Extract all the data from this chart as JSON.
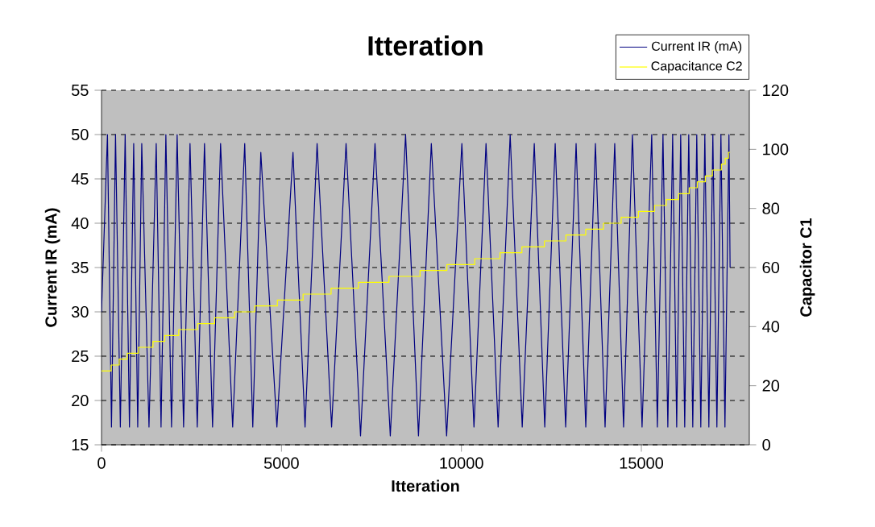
{
  "chart_data": {
    "type": "line",
    "title": "Itteration",
    "xlabel": "Itteration",
    "ylabel": "Current IR (mA)",
    "y2label": "Capacitor C1",
    "xlim": [
      0,
      18000
    ],
    "xticks": [
      0,
      5000,
      10000,
      15000
    ],
    "ylim": [
      15,
      55
    ],
    "yticks": [
      15,
      20,
      25,
      30,
      35,
      40,
      45,
      50,
      55
    ],
    "y2lim": [
      0,
      120
    ],
    "y2ticks": [
      0,
      20,
      40,
      60,
      80,
      100,
      120
    ],
    "grid": "y",
    "legend": "top right",
    "series": [
      {
        "name": "Current IR (mA)",
        "color": "#000080",
        "axis": "y",
        "x": [
          0,
          165,
          277,
          389,
          523,
          657,
          776,
          894,
          1006,
          1118,
          1319,
          1520,
          1654,
          1788,
          1945,
          2101,
          2280,
          2459,
          2660,
          2861,
          3085,
          3308,
          3644,
          3979,
          4203,
          4426,
          4873,
          5320,
          5655,
          5990,
          6393,
          6795,
          7197,
          7599,
          8024,
          8449,
          8807,
          9164,
          9589,
          10013,
          10349,
          10684,
          11020,
          11355,
          11690,
          12025,
          12316,
          12606,
          12897,
          13187,
          13456,
          13724,
          13992,
          14260,
          14506,
          14752,
          15020,
          15288,
          15445,
          15601,
          15736,
          15870,
          15982,
          16093,
          16205,
          16317,
          16429,
          16540,
          16652,
          16764,
          16876,
          16987,
          17099,
          17211,
          17323,
          17434,
          17466
        ],
        "values": [
          30,
          50,
          17,
          50,
          17,
          50,
          17,
          49,
          17,
          49,
          17,
          49,
          17,
          50,
          17,
          50,
          17,
          49,
          17,
          49,
          17,
          49,
          17,
          49,
          17,
          48,
          17,
          48,
          17,
          49,
          17,
          49,
          16,
          49,
          16,
          50,
          16,
          49,
          16,
          49,
          17,
          49,
          17,
          50,
          17,
          49,
          17,
          49,
          17,
          49,
          17,
          49,
          17,
          49,
          17,
          50,
          17,
          50,
          17,
          50,
          17,
          50,
          17,
          50,
          17,
          50,
          17,
          50,
          17,
          50,
          17,
          50,
          17,
          50,
          17,
          50,
          35
        ]
      },
      {
        "name": "Capacitance C2",
        "color": "#ffff00",
        "type": "step",
        "axis": "y2",
        "x": [
          0,
          268,
          492,
          715,
          1028,
          1430,
          1757,
          2146,
          2668,
          3143,
          3697,
          4260,
          4886,
          5601,
          6379,
          7139,
          7988,
          8851,
          9597,
          10371,
          11073,
          11681,
          12307,
          12905,
          13455,
          13947,
          14439,
          14917,
          15364,
          15691,
          16035,
          16330,
          16554,
          16777,
          16974,
          17224,
          17330,
          17421,
          17466
        ],
        "values": [
          25,
          27,
          29,
          31,
          33,
          35,
          37,
          39,
          41,
          43,
          45,
          47,
          49,
          51,
          53,
          55,
          57,
          59,
          61,
          63,
          65,
          67,
          69,
          71,
          73,
          75,
          77,
          79,
          81,
          83,
          85,
          87,
          89,
          91,
          93,
          95,
          97,
          99,
          99
        ]
      }
    ]
  }
}
